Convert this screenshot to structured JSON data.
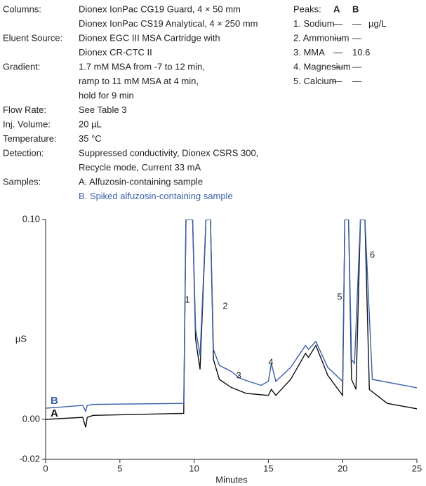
{
  "conditions": [
    {
      "label": "Columns:",
      "lines": [
        "Dionex IonPac CG19 Guard, 4 × 50 mm",
        "Dionex IonPac CS19 Analytical, 4 × 250 mm"
      ]
    },
    {
      "label": "Eluent Source:",
      "lines": [
        "Dionex EGC III MSA Cartridge with",
        "Dionex CR-CTC II"
      ]
    },
    {
      "label": "Gradient:",
      "lines": [
        "1.7 mM MSA from -7 to 12 min,",
        "ramp to 11 mM MSA at 4 min,",
        "hold for 9 min"
      ]
    },
    {
      "label": "Flow Rate:",
      "lines": [
        "See Table 3"
      ]
    },
    {
      "label": "Inj. Volume:",
      "lines": [
        "20 µL"
      ]
    },
    {
      "label": "Temperature:",
      "lines": [
        "35 °C"
      ]
    },
    {
      "label": "Detection:",
      "lines": [
        "Suppressed conductivity, Dionex CSRS 300,",
        "Recycle mode, Current 33 mA"
      ]
    },
    {
      "label": "Samples:",
      "lines": [
        "A. Alfuzosin-containing sample",
        "B. Spiked alfuzosin-containing sample"
      ]
    }
  ],
  "peaks": {
    "header": [
      "Peaks:",
      "A",
      "B"
    ],
    "rows": [
      [
        "1. Sodium",
        "—",
        "—",
        "µg/L"
      ],
      [
        "2. Ammonium",
        "—",
        "—"
      ],
      [
        "3. MMA",
        "—",
        "10.6"
      ],
      [
        "4. Magnesium",
        "—",
        "—"
      ],
      [
        "5. Calcium",
        "—",
        "—"
      ]
    ]
  },
  "chart_data": {
    "type": "line",
    "x_label": "Minutes",
    "y_label": "µS",
    "xlim": [
      0,
      25
    ],
    "xticks": [
      0,
      5,
      10,
      15,
      20,
      25
    ],
    "ylim": [
      -0.02,
      0.1
    ],
    "yticks": [
      -0.02,
      {
        "value": 0,
        "label": "0.00"
      },
      {
        "value": 0.1,
        "label": "0.10"
      }
    ],
    "annotations": [
      {
        "text": "1",
        "x": 9.55,
        "y": 0.0596
      },
      {
        "text": "2",
        "x": 12.1,
        "y": 0.0565
      },
      {
        "text": "3",
        "x": 13.0,
        "y": 0.0218
      },
      {
        "text": "4",
        "x": 15.17,
        "y": 0.0284
      },
      {
        "text": "5",
        "x": 19.8,
        "y": 0.061
      },
      {
        "text": "6",
        "x": 22.0,
        "y": 0.082
      }
    ],
    "series": [
      {
        "name": "A",
        "color": "#111111",
        "x": [
          0,
          2.5,
          2.7,
          2.8,
          3.2,
          9.3,
          9.45,
          9.9,
          10.1,
          10.4,
          10.8,
          11.1,
          11.3,
          11.7,
          12.5,
          13.5,
          15.0,
          15.2,
          15.5,
          16.5,
          17.5,
          17.7,
          18.2,
          19.0,
          20.0,
          20.15,
          20.4,
          20.6,
          20.9,
          21.2,
          21.5,
          21.8,
          23,
          25
        ],
        "values": [
          0.0,
          0.001,
          -0.004,
          0.001,
          0.002,
          0.003,
          0.1,
          0.1,
          0.04,
          0.025,
          0.1,
          0.1,
          0.03,
          0.02,
          0.016,
          0.013,
          0.012,
          0.015,
          0.012,
          0.02,
          0.033,
          0.031,
          0.037,
          0.022,
          0.012,
          0.1,
          0.1,
          0.02,
          0.015,
          0.1,
          0.1,
          0.015,
          0.008,
          0.0053
        ]
      },
      {
        "name": "B",
        "color": "#3a5fa8",
        "x": [
          0,
          2.5,
          2.7,
          2.8,
          3.2,
          9.3,
          9.45,
          9.9,
          10.1,
          10.4,
          10.8,
          11.1,
          11.3,
          11.7,
          12.5,
          13.0,
          13.3,
          14.5,
          15.0,
          15.2,
          15.5,
          16.5,
          17.5,
          17.7,
          18.2,
          19.0,
          20.0,
          20.15,
          20.4,
          20.6,
          20.8,
          21.2,
          21.5,
          22.0,
          25
        ],
        "values": [
          0.0056,
          0.007,
          0.004,
          0.007,
          0.0075,
          0.008,
          0.1,
          0.1,
          0.045,
          0.032,
          0.1,
          0.1,
          0.035,
          0.027,
          0.024,
          0.021,
          0.02,
          0.017,
          0.019,
          0.028,
          0.019,
          0.026,
          0.037,
          0.035,
          0.039,
          0.026,
          0.019,
          0.1,
          0.1,
          0.03,
          0.028,
          0.1,
          0.1,
          0.02,
          0.0158
        ]
      }
    ]
  }
}
